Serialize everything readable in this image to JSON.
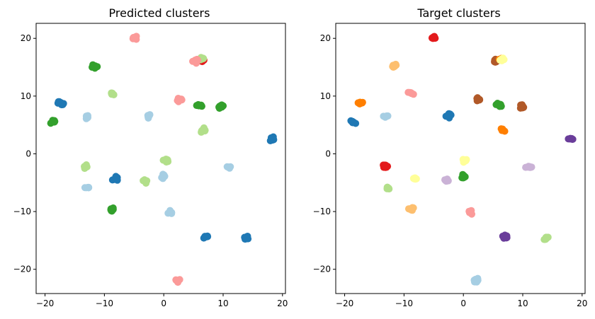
{
  "chart_data": [
    {
      "type": "scatter",
      "title": "Predicted clusters",
      "xlabel": "",
      "ylabel": "",
      "xlim": [
        -21.5,
        20.5
      ],
      "ylim": [
        -24.2,
        22.6
      ],
      "xticks": [
        -20,
        -10,
        0,
        10,
        20
      ],
      "yticks": [
        -20,
        -10,
        0,
        10,
        20
      ],
      "grid": false,
      "clusters": [
        {
          "x": -5.0,
          "y": 20.1,
          "color": "#fb9a99"
        },
        {
          "x": 6.3,
          "y": 16.3,
          "color": "#e31a1c"
        },
        {
          "x": 6.5,
          "y": 16.5,
          "color": "#b2df8a"
        },
        {
          "x": 5.4,
          "y": 16.0,
          "color": "#fb9a99"
        },
        {
          "x": -11.7,
          "y": 15.2,
          "color": "#33a02c"
        },
        {
          "x": -17.4,
          "y": 8.8,
          "color": "#1f78b4"
        },
        {
          "x": -8.8,
          "y": 10.5,
          "color": "#b2df8a"
        },
        {
          "x": 2.6,
          "y": 9.4,
          "color": "#fb9a99"
        },
        {
          "x": 6.0,
          "y": 8.4,
          "color": "#33a02c"
        },
        {
          "x": 9.8,
          "y": 8.1,
          "color": "#33a02c"
        },
        {
          "x": -18.6,
          "y": 5.5,
          "color": "#33a02c"
        },
        {
          "x": -13.0,
          "y": 6.5,
          "color": "#a6cee3"
        },
        {
          "x": -2.5,
          "y": 6.6,
          "color": "#a6cee3"
        },
        {
          "x": 6.6,
          "y": 4.1,
          "color": "#b2df8a"
        },
        {
          "x": 18.2,
          "y": 2.6,
          "color": "#1f78b4"
        },
        {
          "x": 0.4,
          "y": -1.2,
          "color": "#b2df8a"
        },
        {
          "x": -13.1,
          "y": -2.2,
          "color": "#b2df8a"
        },
        {
          "x": 0.0,
          "y": -3.9,
          "color": "#a6cee3"
        },
        {
          "x": 11.0,
          "y": -2.3,
          "color": "#a6cee3"
        },
        {
          "x": -8.2,
          "y": -4.3,
          "color": "#1f78b4"
        },
        {
          "x": -3.0,
          "y": -4.7,
          "color": "#b2df8a"
        },
        {
          "x": -12.8,
          "y": -5.8,
          "color": "#a6cee3"
        },
        {
          "x": -8.7,
          "y": -9.6,
          "color": "#33a02c"
        },
        {
          "x": 1.1,
          "y": -10.1,
          "color": "#a6cee3"
        },
        {
          "x": 7.0,
          "y": -14.4,
          "color": "#1f78b4"
        },
        {
          "x": 13.9,
          "y": -14.5,
          "color": "#1f78b4"
        },
        {
          "x": 2.2,
          "y": -21.9,
          "color": "#fb9a99"
        }
      ]
    },
    {
      "type": "scatter",
      "title": "Target clusters",
      "xlabel": "",
      "ylabel": "",
      "xlim": [
        -21.5,
        20.5
      ],
      "ylim": [
        -24.2,
        22.6
      ],
      "xticks": [
        -20,
        -10,
        0,
        10,
        20
      ],
      "yticks": [
        -20,
        -10,
        0,
        10,
        20
      ],
      "grid": false,
      "clusters": [
        {
          "x": -5.0,
          "y": 20.1,
          "color": "#e31a1c"
        },
        {
          "x": 5.4,
          "y": 16.0,
          "color": "#b15928"
        },
        {
          "x": 6.4,
          "y": 16.3,
          "color": "#ff7f00"
        },
        {
          "x": 6.6,
          "y": 16.4,
          "color": "#ffff99"
        },
        {
          "x": -11.7,
          "y": 15.2,
          "color": "#fdbf6f"
        },
        {
          "x": -17.4,
          "y": 8.8,
          "color": "#ff7f00"
        },
        {
          "x": -8.8,
          "y": 10.5,
          "color": "#fb9a99"
        },
        {
          "x": 2.6,
          "y": 9.4,
          "color": "#b15928"
        },
        {
          "x": 6.0,
          "y": 8.4,
          "color": "#33a02c"
        },
        {
          "x": 9.8,
          "y": 8.1,
          "color": "#b15928"
        },
        {
          "x": -18.6,
          "y": 5.5,
          "color": "#1f78b4"
        },
        {
          "x": -13.0,
          "y": 6.5,
          "color": "#a6cee3"
        },
        {
          "x": -2.5,
          "y": 6.6,
          "color": "#1f78b4"
        },
        {
          "x": 6.6,
          "y": 4.1,
          "color": "#ff7f00"
        },
        {
          "x": 18.2,
          "y": 2.6,
          "color": "#6a3d9a"
        },
        {
          "x": 0.4,
          "y": -1.2,
          "color": "#ffff99"
        },
        {
          "x": -13.1,
          "y": -2.2,
          "color": "#e31a1c"
        },
        {
          "x": 0.0,
          "y": -3.9,
          "color": "#33a02c"
        },
        {
          "x": 11.0,
          "y": -2.3,
          "color": "#cab2d6"
        },
        {
          "x": -8.2,
          "y": -4.3,
          "color": "#ffff99"
        },
        {
          "x": -3.0,
          "y": -4.7,
          "color": "#cab2d6"
        },
        {
          "x": -12.8,
          "y": -5.8,
          "color": "#b2df8a"
        },
        {
          "x": -8.7,
          "y": -9.6,
          "color": "#fdbf6f"
        },
        {
          "x": 1.1,
          "y": -10.1,
          "color": "#fb9a99"
        },
        {
          "x": 7.0,
          "y": -14.4,
          "color": "#6a3d9a"
        },
        {
          "x": 13.9,
          "y": -14.5,
          "color": "#b2df8a"
        },
        {
          "x": 2.2,
          "y": -21.9,
          "color": "#a6cee3"
        }
      ]
    }
  ]
}
